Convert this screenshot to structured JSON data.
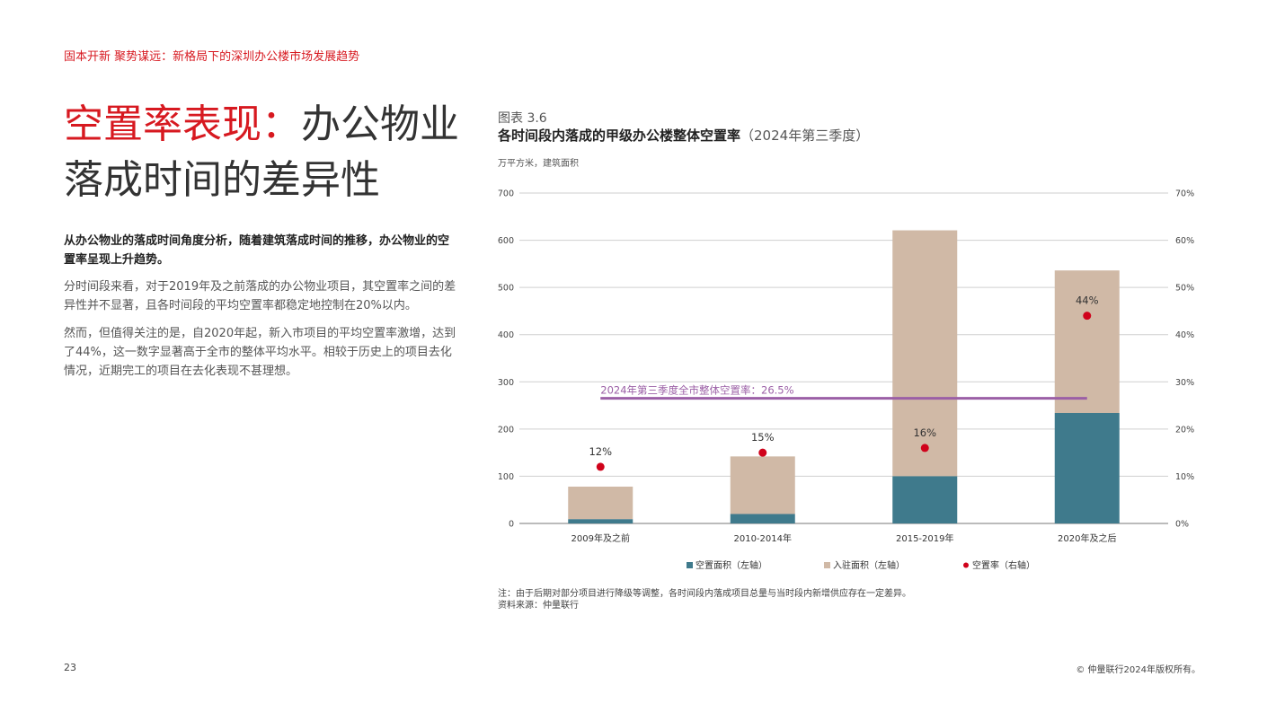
{
  "header": {
    "title": "固本开新 聚势谋远：新格局下的深圳办公楼市场发展趋势"
  },
  "heading": {
    "accent": "空置率表现：",
    "rest": "办公物业落成时间的差异性"
  },
  "body": {
    "lead": "从办公物业的落成时间角度分析，随着建筑落成时间的推移，办公物业的空置率呈现上升趋势。",
    "para1": "分时间段来看，对于2019年及之前落成的办公物业项目，其空置率之间的差异性并不显著，且各时间段的平均空置率都稳定地控制在20%以内。",
    "para2": "然而，但值得关注的是，自2020年起，新入市项目的平均空置率激增，达到了44%，这一数字显著高于全市的整体平均水平。相较于历史上的项目去化情况，近期完工的项目在去化表现不甚理想。"
  },
  "figure": {
    "label": "图表 3.6",
    "title_main": "各时间段内落成的甲级办公楼整体空置率",
    "title_suffix": "（2024年第三季度）",
    "unit": "万平方米，建筑面积"
  },
  "chart_data": {
    "type": "bar",
    "stacked": true,
    "categories": [
      "2009年及之前",
      "2010-2014年",
      "2015-2019年",
      "2020年及之后"
    ],
    "series": [
      {
        "name": "空置面积（左轴）",
        "values": [
          9,
          20,
          100,
          234
        ],
        "color": "#3f7a8c",
        "axis": "left"
      },
      {
        "name": "入驻面积（左轴）",
        "values": [
          69,
          122,
          521,
          302
        ],
        "color": "#d0b9a6",
        "axis": "left"
      },
      {
        "name": "空置率（右轴）",
        "type": "scatter",
        "values": [
          12,
          15,
          16,
          44
        ],
        "labels": [
          "12%",
          "15%",
          "16%",
          "44%"
        ],
        "color": "#d0021b",
        "axis": "right"
      }
    ],
    "reference_line": {
      "label": "2024年第三季度全市整体空置率：26.5%",
      "value": 26.5,
      "color": "#9b5fa6"
    },
    "y_left": {
      "range": [
        0,
        700
      ],
      "ticks": [
        "0",
        "100",
        "200",
        "300",
        "400",
        "500",
        "600",
        "700"
      ]
    },
    "y_right": {
      "range": [
        0,
        70
      ],
      "ticks": [
        "0%",
        "10%",
        "20%",
        "30%",
        "40%",
        "50%",
        "60%",
        "70%"
      ]
    },
    "grid": true,
    "legend_position": "bottom"
  },
  "footer": {
    "note": "注：由于后期对部分项目进行降级等调整，各时间段内落成项目总量与当时段内新增供应存在一定差异。",
    "source": "资料来源：仲量联行",
    "page_number": "23",
    "copyright": "© 仲量联行2024年版权所有。"
  }
}
